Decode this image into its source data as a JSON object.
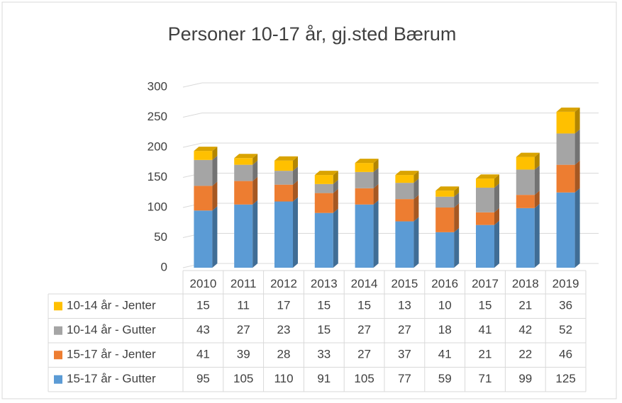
{
  "chart_data": {
    "type": "bar",
    "stacked": true,
    "title": "Personer 10-17 år, gj.sted Bærum",
    "categories": [
      "2010",
      "2011",
      "2012",
      "2013",
      "2014",
      "2015",
      "2016",
      "2017",
      "2018",
      "2019"
    ],
    "series": [
      {
        "name": "10-14 år - Jenter",
        "color": "#ffc000",
        "values": [
          15,
          11,
          17,
          15,
          15,
          13,
          10,
          15,
          21,
          36
        ]
      },
      {
        "name": "10-14 år - Gutter",
        "color": "#a5a5a5",
        "values": [
          43,
          27,
          23,
          15,
          27,
          27,
          18,
          41,
          42,
          52
        ]
      },
      {
        "name": "15-17 år - Jenter",
        "color": "#ed7d31",
        "values": [
          41,
          39,
          28,
          33,
          27,
          37,
          41,
          21,
          22,
          46
        ]
      },
      {
        "name": "15-17 år - Gutter",
        "color": "#5b9bd5",
        "values": [
          95,
          105,
          110,
          91,
          105,
          77,
          59,
          71,
          99,
          125
        ]
      }
    ],
    "ylim": [
      0,
      300
    ],
    "yticks": [
      0,
      50,
      100,
      150,
      200,
      250,
      300
    ],
    "grid": true,
    "legend": "table"
  }
}
